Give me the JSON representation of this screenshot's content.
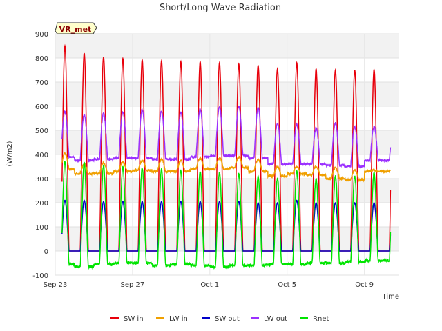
{
  "chart_data": {
    "type": "line",
    "title": "Short/Long Wave Radiation",
    "xlabel": "Time",
    "ylabel": "(W/m2)",
    "site_badge": "VR_met",
    "ylim": [
      -100,
      900
    ],
    "yticks": [
      -100,
      0,
      100,
      200,
      300,
      400,
      500,
      600,
      700,
      800,
      900
    ],
    "xlim_days": [
      0,
      17.8
    ],
    "xticks": [
      {
        "label": "Sep 23",
        "day": 0
      },
      {
        "label": "Sep 27",
        "day": 4
      },
      {
        "label": "Oct 1",
        "day": 8
      },
      {
        "label": "Oct 5",
        "day": 12
      },
      {
        "label": "Oct 9",
        "day": 16
      }
    ],
    "grid": true,
    "legend_position": "bottom",
    "series": [
      {
        "name": "SW in",
        "color": "#e8000b",
        "daily_peak": [
          850,
          820,
          805,
          798,
          792,
          788,
          785,
          785,
          780,
          775,
          770,
          755,
          780,
          755,
          750,
          750,
          752
        ],
        "night": 0
      },
      {
        "name": "LW in",
        "color": "#f0a000",
        "daily_peak": [
          405,
          360,
          365,
          370,
          375,
          380,
          375,
          385,
          385,
          390,
          380,
          350,
          350,
          350,
          345,
          335,
          335
        ],
        "night": [
          340,
          320,
          320,
          330,
          335,
          330,
          330,
          340,
          340,
          345,
          330,
          310,
          320,
          315,
          300,
          295,
          330
        ]
      },
      {
        "name": "SW out",
        "color": "#0000c8",
        "daily_peak": [
          210,
          210,
          205,
          205,
          205,
          205,
          205,
          205,
          205,
          205,
          200,
          200,
          210,
          200,
          200,
          200,
          200
        ],
        "night": 0
      },
      {
        "name": "LW out",
        "color": "#9b30ff",
        "daily_peak": [
          580,
          565,
          570,
          575,
          585,
          580,
          575,
          590,
          598,
          600,
          595,
          530,
          525,
          510,
          530,
          515,
          515
        ],
        "night": [
          390,
          375,
          380,
          385,
          385,
          380,
          380,
          390,
          395,
          395,
          385,
          360,
          360,
          360,
          355,
          350,
          375
        ]
      },
      {
        "name": "Rnet",
        "color": "#00e400",
        "daily_peak": [
          370,
          365,
          355,
          350,
          345,
          340,
          335,
          330,
          325,
          320,
          310,
          300,
          330,
          300,
          310,
          310,
          325
        ],
        "night": [
          -55,
          -65,
          -55,
          -50,
          -50,
          -60,
          -55,
          -60,
          -65,
          -60,
          -60,
          -55,
          -55,
          -50,
          -50,
          -45,
          -40
        ]
      }
    ]
  }
}
